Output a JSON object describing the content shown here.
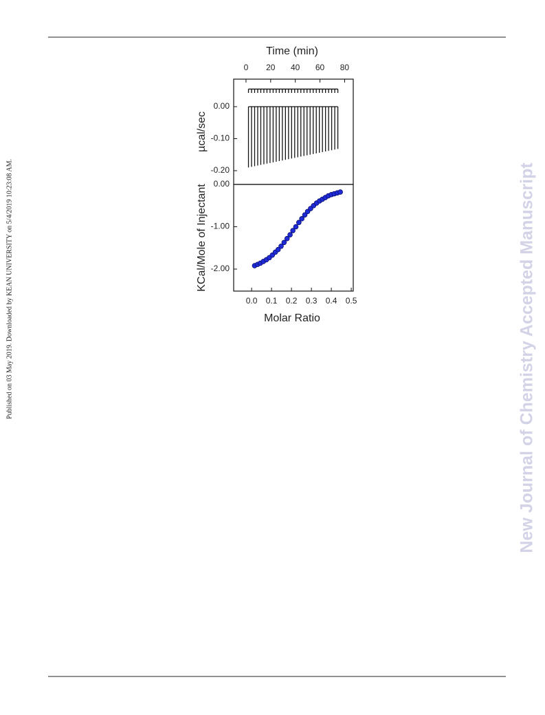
{
  "page": {
    "side_note": "Published on 03 May 2019. Downloaded by KEAN UNIVERSITY on 5/4/2019 10:23:08 AM.",
    "watermark": "New Journal of Chemistry Accepted Manuscript"
  },
  "chart_data": [
    {
      "type": "spikes",
      "xlabel": "Time (min)",
      "ylabel": "µcal/sec",
      "x_axis_position": "top",
      "x": [
        2,
        4.5,
        7,
        9.5,
        12,
        14.5,
        17,
        19.5,
        22,
        24.5,
        27,
        29.5,
        32,
        34.5,
        37,
        39.5,
        42,
        44.5,
        47,
        49.5,
        52,
        54.5,
        57,
        59.5,
        62,
        64.5,
        67,
        69.5,
        72,
        74.5
      ],
      "series": [
        {
          "color": "#111111",
          "baseline": 0.055,
          "values": [
            0.043,
            0.043,
            0.043,
            0.043,
            0.043,
            0.043,
            0.043,
            0.043,
            0.043,
            0.043,
            0.043,
            0.043,
            0.043,
            0.043,
            0.043,
            0.043,
            0.043,
            0.043,
            0.043,
            0.043,
            0.043,
            0.043,
            0.043,
            0.043,
            0.043,
            0.043,
            0.043,
            0.043,
            0.043,
            0.043
          ]
        },
        {
          "color": "#111111",
          "baseline": 0,
          "values": [
            -0.19,
            -0.188,
            -0.186,
            -0.184,
            -0.182,
            -0.18,
            -0.178,
            -0.176,
            -0.174,
            -0.172,
            -0.17,
            -0.168,
            -0.166,
            -0.164,
            -0.162,
            -0.16,
            -0.158,
            -0.156,
            -0.154,
            -0.152,
            -0.15,
            -0.148,
            -0.146,
            -0.144,
            -0.142,
            -0.14,
            -0.138,
            -0.136,
            -0.134,
            -0.132
          ]
        }
      ],
      "xlim": [
        -10,
        87
      ],
      "xticks": [
        0,
        20,
        40,
        60,
        80
      ],
      "ylim": [
        -0.243,
        0.086
      ],
      "yticks": [
        {
          "value": 0,
          "label": "0.00"
        },
        {
          "value": -0.1,
          "label": "-0.10"
        },
        {
          "value": -0.2,
          "label": "-0.20"
        }
      ]
    },
    {
      "type": "scatter",
      "xlabel": "Molar Ratio",
      "ylabel": "KCal/Mole of Injectant",
      "x_axis_position": "bottom",
      "x": [
        0.015,
        0.03,
        0.044,
        0.059,
        0.074,
        0.089,
        0.104,
        0.119,
        0.133,
        0.148,
        0.163,
        0.178,
        0.193,
        0.207,
        0.222,
        0.237,
        0.252,
        0.267,
        0.281,
        0.296,
        0.311,
        0.326,
        0.341,
        0.355,
        0.37,
        0.385,
        0.4,
        0.415,
        0.43,
        0.445
      ],
      "series": [
        {
          "color": "#1f2bd6",
          "values": [
            -1.92,
            -1.89,
            -1.86,
            -1.82,
            -1.78,
            -1.73,
            -1.67,
            -1.6,
            -1.54,
            -1.46,
            -1.37,
            -1.28,
            -1.19,
            -1.09,
            -1.0,
            -0.9,
            -0.81,
            -0.72,
            -0.64,
            -0.57,
            -0.5,
            -0.44,
            -0.39,
            -0.35,
            -0.31,
            -0.27,
            -0.24,
            -0.22,
            -0.2,
            -0.18
          ]
        }
      ],
      "xlim": [
        -0.09,
        0.51
      ],
      "xticks": [
        {
          "value": 0,
          "label": "0.0"
        },
        0.1,
        0.2,
        0.3,
        0.4,
        0.5
      ],
      "ylim": [
        -2.52,
        0
      ],
      "yticks": [
        {
          "value": 0,
          "label": "0.00"
        },
        {
          "value": -1,
          "label": "-1.00"
        },
        {
          "value": -2,
          "label": "-2.00"
        }
      ]
    }
  ]
}
